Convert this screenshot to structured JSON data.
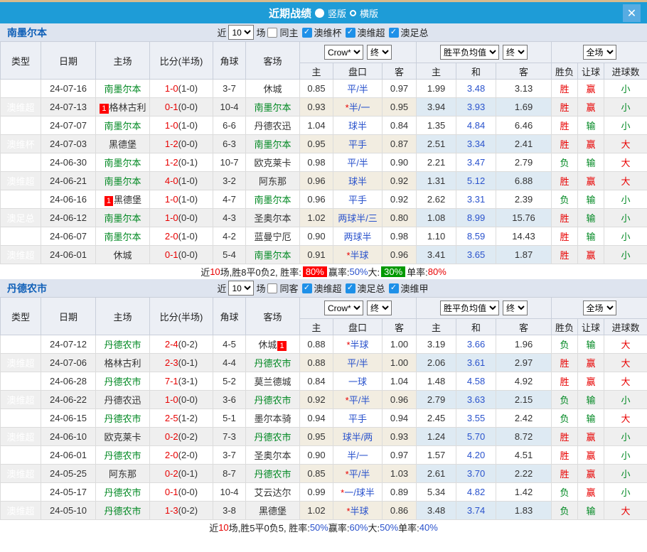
{
  "window": {
    "title": "近期战绩",
    "close_icon": "✕"
  },
  "view_modes": {
    "vertical": "竖版",
    "horizontal": "横版",
    "selected": "竖版"
  },
  "filters_common": {
    "near": "近",
    "unit": "场"
  },
  "dropdowns": {
    "crow": "Crow*",
    "final": "终",
    "avg": "胜平负均值",
    "full": "全场"
  },
  "columns": {
    "type": "类型",
    "date": "日期",
    "home": "主场",
    "score": "比分(半场)",
    "corner": "角球",
    "away": "客场",
    "h": "主",
    "handicap": "盘口",
    "a": "客",
    "avg_h": "主",
    "avg_d": "和",
    "avg_a": "客",
    "wdl": "胜负",
    "let": "让球",
    "goals": "进球数"
  },
  "colors": {
    "title_bar": "#1E9CD7",
    "close_button": "#57ACE2",
    "section_bar": "#DEE4EF",
    "type_green": "#2DB47E",
    "type_orange": "#FFA143",
    "red": "#E80000",
    "green": "#008822",
    "blue": "#2952CC",
    "badge_red": "#FF0000",
    "badge_green": "#009900",
    "crow_col_bg": "#FBF6EB",
    "avg_col_bg": "#E7F3FA"
  },
  "sections": [
    {
      "team": "南墨尔本",
      "filters": {
        "count": "10",
        "same": "同主",
        "leagues": [
          "澳维杯",
          "澳维超",
          "澳足总"
        ]
      },
      "rows": [
        {
          "type": "澳维杯",
          "tc": "green",
          "date": "24-07-16",
          "hbadge": "",
          "home": "南墨尔本",
          "hgreen": true,
          "score": "1-0",
          "half": "(1-0)",
          "corner": "3-7",
          "away": "休城",
          "agreen": false,
          "abadge": "",
          "ch": "0.85",
          "hc": "平/半",
          "ca": "0.97",
          "ah": "1.99",
          "ad": "3.48",
          "aa": "3.13",
          "rw": "胜",
          "rh": "赢",
          "rg": "小"
        },
        {
          "type": "澳维超",
          "tc": "orange",
          "date": "24-07-13",
          "hbadge": "1",
          "home": "格林古利",
          "hgreen": false,
          "score": "0-1",
          "half": "(0-0)",
          "corner": "10-4",
          "away": "南墨尔本",
          "agreen": true,
          "abadge": "",
          "ch": "0.93",
          "hc": "*半/一",
          "ca": "0.95",
          "ah": "3.94",
          "ad": "3.93",
          "aa": "1.69",
          "rw": "胜",
          "rh": "赢",
          "rg": "小"
        },
        {
          "type": "澳维超",
          "tc": "orange",
          "date": "24-07-07",
          "hbadge": "",
          "home": "南墨尔本",
          "hgreen": true,
          "score": "1-0",
          "half": "(1-0)",
          "corner": "6-6",
          "away": "丹德农迅",
          "agreen": false,
          "abadge": "",
          "ch": "1.04",
          "hc": "球半",
          "ca": "0.84",
          "ah": "1.35",
          "ad": "4.84",
          "aa": "6.46",
          "rw": "胜",
          "rh": "输",
          "rg": "小"
        },
        {
          "type": "澳维杯",
          "tc": "green",
          "date": "24-07-03",
          "hbadge": "",
          "home": "黑德堡",
          "hgreen": false,
          "score": "1-2",
          "half": "(0-0)",
          "corner": "6-3",
          "away": "南墨尔本",
          "agreen": true,
          "abadge": "",
          "ch": "0.95",
          "hc": "平手",
          "ca": "0.87",
          "ah": "2.51",
          "ad": "3.34",
          "aa": "2.41",
          "rw": "胜",
          "rh": "赢",
          "rg": "大"
        },
        {
          "type": "澳维超",
          "tc": "orange",
          "date": "24-06-30",
          "hbadge": "",
          "home": "南墨尔本",
          "hgreen": true,
          "score": "1-2",
          "half": "(0-1)",
          "corner": "10-7",
          "away": "欧克莱卡",
          "agreen": false,
          "abadge": "",
          "ch": "0.98",
          "hc": "平/半",
          "ca": "0.90",
          "ah": "2.21",
          "ad": "3.47",
          "aa": "2.79",
          "rw": "负",
          "rh": "输",
          "rg": "大"
        },
        {
          "type": "澳维超",
          "tc": "orange",
          "date": "24-06-21",
          "hbadge": "",
          "home": "南墨尔本",
          "hgreen": true,
          "score": "4-0",
          "half": "(1-0)",
          "corner": "3-2",
          "away": "阿东那",
          "agreen": false,
          "abadge": "",
          "ch": "0.96",
          "hc": "球半",
          "ca": "0.92",
          "ah": "1.31",
          "ad": "5.12",
          "aa": "6.88",
          "rw": "胜",
          "rh": "赢",
          "rg": "大"
        },
        {
          "type": "澳维超",
          "tc": "orange",
          "date": "24-06-16",
          "hbadge": "1",
          "home": "黑德堡",
          "hgreen": false,
          "score": "1-0",
          "half": "(1-0)",
          "corner": "4-7",
          "away": "南墨尔本",
          "agreen": true,
          "abadge": "",
          "ch": "0.96",
          "hc": "平手",
          "ca": "0.92",
          "ah": "2.62",
          "ad": "3.31",
          "aa": "2.39",
          "rw": "负",
          "rh": "输",
          "rg": "小"
        },
        {
          "type": "澳足总",
          "tc": "green",
          "date": "24-06-12",
          "hbadge": "",
          "home": "南墨尔本",
          "hgreen": true,
          "score": "1-0",
          "half": "(0-0)",
          "corner": "4-3",
          "away": "圣奥尔本",
          "agreen": false,
          "abadge": "",
          "ch": "1.02",
          "hc": "两球半/三",
          "ca": "0.80",
          "ah": "1.08",
          "ad": "8.99",
          "aa": "15.76",
          "rw": "胜",
          "rh": "输",
          "rg": "小"
        },
        {
          "type": "澳维超",
          "tc": "orange",
          "date": "24-06-07",
          "hbadge": "",
          "home": "南墨尔本",
          "hgreen": true,
          "score": "2-0",
          "half": "(1-0)",
          "corner": "4-2",
          "away": "蓝曼宁厄",
          "agreen": false,
          "abadge": "",
          "ch": "0.90",
          "hc": "两球半",
          "ca": "0.98",
          "ah": "1.10",
          "ad": "8.59",
          "aa": "14.43",
          "rw": "胜",
          "rh": "输",
          "rg": "小"
        },
        {
          "type": "澳维超",
          "tc": "orange",
          "date": "24-06-01",
          "hbadge": "",
          "home": "休城",
          "hgreen": false,
          "score": "0-1",
          "half": "(0-0)",
          "corner": "5-4",
          "away": "南墨尔本",
          "agreen": true,
          "abadge": "",
          "ch": "0.91",
          "hc": "*半球",
          "ca": "0.96",
          "ah": "3.41",
          "ad": "3.65",
          "aa": "1.87",
          "rw": "胜",
          "rh": "赢",
          "rg": "小"
        }
      ],
      "summary": [
        {
          "t": "近",
          "s": "plain"
        },
        {
          "t": "10",
          "s": "red"
        },
        {
          "t": "场,胜8平0负2, 胜率:",
          "s": "plain"
        },
        {
          "t": "80%",
          "s": "badge-red"
        },
        {
          "t": " 赢率:",
          "s": "plain"
        },
        {
          "t": "50%",
          "s": "blue"
        },
        {
          "t": " 大:",
          "s": "plain"
        },
        {
          "t": "30%",
          "s": "badge-green"
        },
        {
          "t": " 单率:",
          "s": "plain"
        },
        {
          "t": "80%",
          "s": "red"
        }
      ]
    },
    {
      "team": "丹德农市",
      "filters": {
        "count": "10",
        "same": "同客",
        "leagues": [
          "澳维超",
          "澳足总",
          "澳维甲"
        ]
      },
      "rows": [
        {
          "type": "澳维超",
          "tc": "orange",
          "date": "24-07-12",
          "hbadge": "",
          "home": "丹德农市",
          "hgreen": true,
          "score": "2-4",
          "half": "(0-2)",
          "corner": "4-5",
          "away": "休城",
          "agreen": false,
          "abadge": "1",
          "ch": "0.88",
          "hc": "*半球",
          "ca": "1.00",
          "ah": "3.19",
          "ad": "3.66",
          "aa": "1.96",
          "rw": "负",
          "rh": "输",
          "rg": "大"
        },
        {
          "type": "澳维超",
          "tc": "orange",
          "date": "24-07-06",
          "hbadge": "",
          "home": "格林古利",
          "hgreen": false,
          "score": "2-3",
          "half": "(0-1)",
          "corner": "4-4",
          "away": "丹德农市",
          "agreen": true,
          "abadge": "",
          "ch": "0.88",
          "hc": "平/半",
          "ca": "1.00",
          "ah": "2.06",
          "ad": "3.61",
          "aa": "2.97",
          "rw": "胜",
          "rh": "赢",
          "rg": "大"
        },
        {
          "type": "澳维超",
          "tc": "orange",
          "date": "24-06-28",
          "hbadge": "",
          "home": "丹德农市",
          "hgreen": true,
          "score": "7-1",
          "half": "(3-1)",
          "corner": "5-2",
          "away": "莫兰德城",
          "agreen": false,
          "abadge": "",
          "ch": "0.84",
          "hc": "一球",
          "ca": "1.04",
          "ah": "1.48",
          "ad": "4.58",
          "aa": "4.92",
          "rw": "胜",
          "rh": "赢",
          "rg": "大"
        },
        {
          "type": "澳维超",
          "tc": "orange",
          "date": "24-06-22",
          "hbadge": "",
          "home": "丹德农迅",
          "hgreen": false,
          "score": "1-0",
          "half": "(0-0)",
          "corner": "3-6",
          "away": "丹德农市",
          "agreen": true,
          "abadge": "",
          "ch": "0.92",
          "hc": "*平/半",
          "ca": "0.96",
          "ah": "2.79",
          "ad": "3.63",
          "aa": "2.15",
          "rw": "负",
          "rh": "输",
          "rg": "小"
        },
        {
          "type": "澳维超",
          "tc": "orange",
          "date": "24-06-15",
          "hbadge": "",
          "home": "丹德农市",
          "hgreen": true,
          "score": "2-5",
          "half": "(1-2)",
          "corner": "5-1",
          "away": "墨尔本骑",
          "agreen": false,
          "abadge": "",
          "ch": "0.94",
          "hc": "平手",
          "ca": "0.94",
          "ah": "2.45",
          "ad": "3.55",
          "aa": "2.42",
          "rw": "负",
          "rh": "输",
          "rg": "大"
        },
        {
          "type": "澳维超",
          "tc": "orange",
          "date": "24-06-10",
          "hbadge": "",
          "home": "欧克莱卡",
          "hgreen": false,
          "score": "0-2",
          "half": "(0-2)",
          "corner": "7-3",
          "away": "丹德农市",
          "agreen": true,
          "abadge": "",
          "ch": "0.95",
          "hc": "球半/两",
          "ca": "0.93",
          "ah": "1.24",
          "ad": "5.70",
          "aa": "8.72",
          "rw": "胜",
          "rh": "赢",
          "rg": "小"
        },
        {
          "type": "澳维超",
          "tc": "orange",
          "date": "24-06-01",
          "hbadge": "",
          "home": "丹德农市",
          "hgreen": true,
          "score": "2-0",
          "half": "(2-0)",
          "corner": "3-7",
          "away": "圣奥尔本",
          "agreen": false,
          "abadge": "",
          "ch": "0.90",
          "hc": "半/一",
          "ca": "0.97",
          "ah": "1.57",
          "ad": "4.20",
          "aa": "4.51",
          "rw": "胜",
          "rh": "赢",
          "rg": "小"
        },
        {
          "type": "澳维超",
          "tc": "orange",
          "date": "24-05-25",
          "hbadge": "",
          "home": "阿东那",
          "hgreen": false,
          "score": "0-2",
          "half": "(0-1)",
          "corner": "8-7",
          "away": "丹德农市",
          "agreen": true,
          "abadge": "",
          "ch": "0.85",
          "hc": "*平/半",
          "ca": "1.03",
          "ah": "2.61",
          "ad": "3.70",
          "aa": "2.22",
          "rw": "胜",
          "rh": "赢",
          "rg": "小"
        },
        {
          "type": "澳维超",
          "tc": "orange",
          "date": "24-05-17",
          "hbadge": "",
          "home": "丹德农市",
          "hgreen": true,
          "score": "0-1",
          "half": "(0-0)",
          "corner": "10-4",
          "away": "艾云达尔",
          "agreen": false,
          "abadge": "",
          "ch": "0.99",
          "hc": "*一/球半",
          "ca": "0.89",
          "ah": "5.34",
          "ad": "4.82",
          "aa": "1.42",
          "rw": "负",
          "rh": "赢",
          "rg": "小"
        },
        {
          "type": "澳维超",
          "tc": "orange",
          "date": "24-05-10",
          "hbadge": "",
          "home": "丹德农市",
          "hgreen": true,
          "score": "1-3",
          "half": "(0-2)",
          "corner": "3-8",
          "away": "黑德堡",
          "agreen": false,
          "abadge": "",
          "ch": "1.02",
          "hc": "*半球",
          "ca": "0.86",
          "ah": "3.48",
          "ad": "3.74",
          "aa": "1.83",
          "rw": "负",
          "rh": "输",
          "rg": "大"
        }
      ],
      "summary": [
        {
          "t": "近",
          "s": "plain"
        },
        {
          "t": "10",
          "s": "red"
        },
        {
          "t": "场,胜5平0负5, 胜率:",
          "s": "plain"
        },
        {
          "t": "50%",
          "s": "blue"
        },
        {
          "t": " 赢率:",
          "s": "plain"
        },
        {
          "t": "60%",
          "s": "blue"
        },
        {
          "t": " 大:",
          "s": "plain"
        },
        {
          "t": "50%",
          "s": "blue"
        },
        {
          "t": " 单率:",
          "s": "plain"
        },
        {
          "t": "40%",
          "s": "blue"
        }
      ]
    }
  ]
}
